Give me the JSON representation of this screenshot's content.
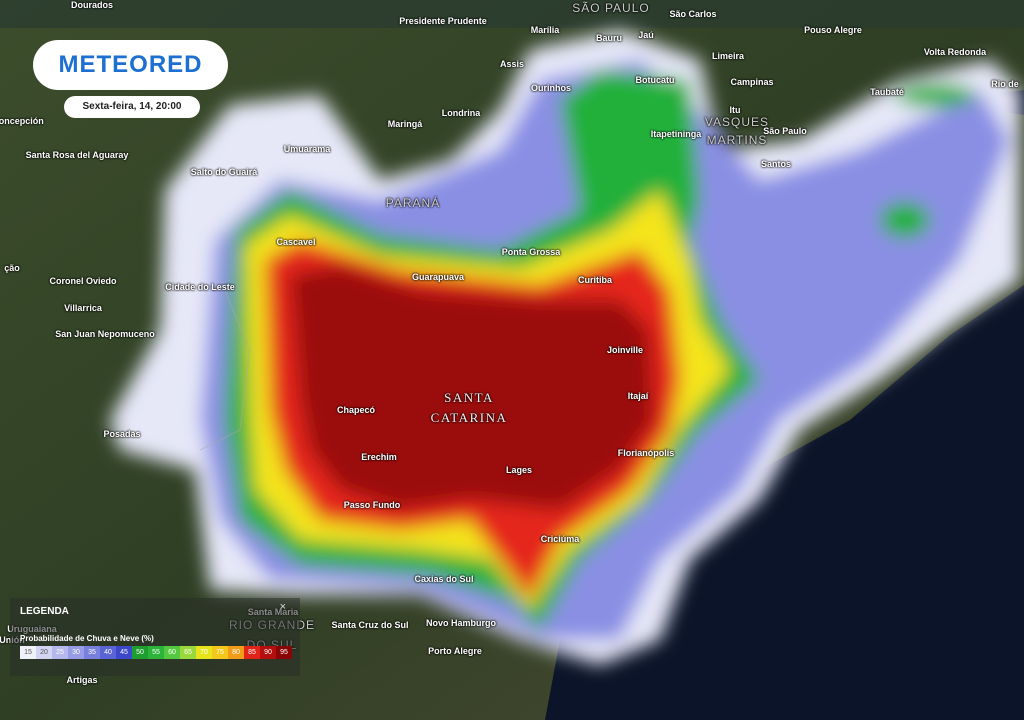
{
  "logo": "METEORED",
  "timestamp": "Sexta-feira, 14, 20:00",
  "map": {
    "labels": [
      "Dourados",
      "Presidente Prudente",
      "SÃO PAULO",
      "São Carlos",
      "Marília",
      "Bauru",
      "Jaú",
      "Pouso Alegre",
      "Limeira",
      "Volta Redonda",
      "Assis",
      "Botucatu",
      "Campinas",
      "Rio de",
      "Ourinhos",
      "Taubaté",
      "Itu",
      "Londrina",
      "Maringá",
      "VASQUES",
      "MARTINS",
      "Itapetininga",
      "São Paulo",
      "Santos",
      "Umuarama",
      "Concepción",
      "Santa Rosa del Aguaray",
      "Salto do Guairá",
      "PARANÁ",
      "Cascavel",
      "Ponta Grossa",
      "ção",
      "Coronel Oviedo",
      "Guarapuava",
      "Curitiba",
      "Cidade do Leste",
      "Villarrica",
      "San Juan Nepomuceno",
      "Joinville",
      "SANTA",
      "CATARINA",
      "Itajaí",
      "Chapecó",
      "Posadas",
      "Florianópolis",
      "Erechim",
      "Lages",
      "Passo Fundo",
      "Criciúma",
      "Caxias do Sul",
      "Santa Maria",
      "RIO GRANDE",
      "DO SUL",
      "Uruguaiana",
      "Santa Cruz do Sul",
      "Novo Hamburgo",
      "Unión",
      "Porto Alegre",
      "Artigas"
    ]
  },
  "legend": {
    "title": "LEGENDA",
    "close": "×",
    "subtitle": "Probabilidade de Chuva e Neve (%)",
    "values": [
      15,
      20,
      25,
      30,
      35,
      40,
      45,
      50,
      55,
      60,
      65,
      70,
      75,
      80,
      85,
      90,
      95
    ]
  }
}
